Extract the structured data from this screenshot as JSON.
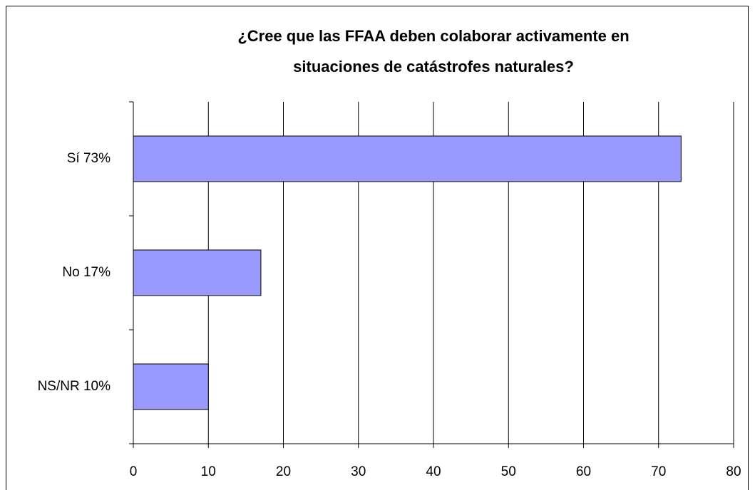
{
  "chart_data": {
    "type": "bar",
    "orientation": "horizontal",
    "title": [
      "¿Cree que las FFAA deben colaborar activamente en",
      "situaciones de catástrofes naturales?"
    ],
    "categories": [
      "Sí 73%",
      "No 17%",
      "NS/NR 10%"
    ],
    "values": [
      73,
      17,
      10
    ],
    "color": "#9999ff",
    "xlim": [
      0,
      80
    ],
    "xticks": [
      0,
      10,
      20,
      30,
      40,
      50,
      60,
      70,
      80
    ],
    "grid": true
  }
}
